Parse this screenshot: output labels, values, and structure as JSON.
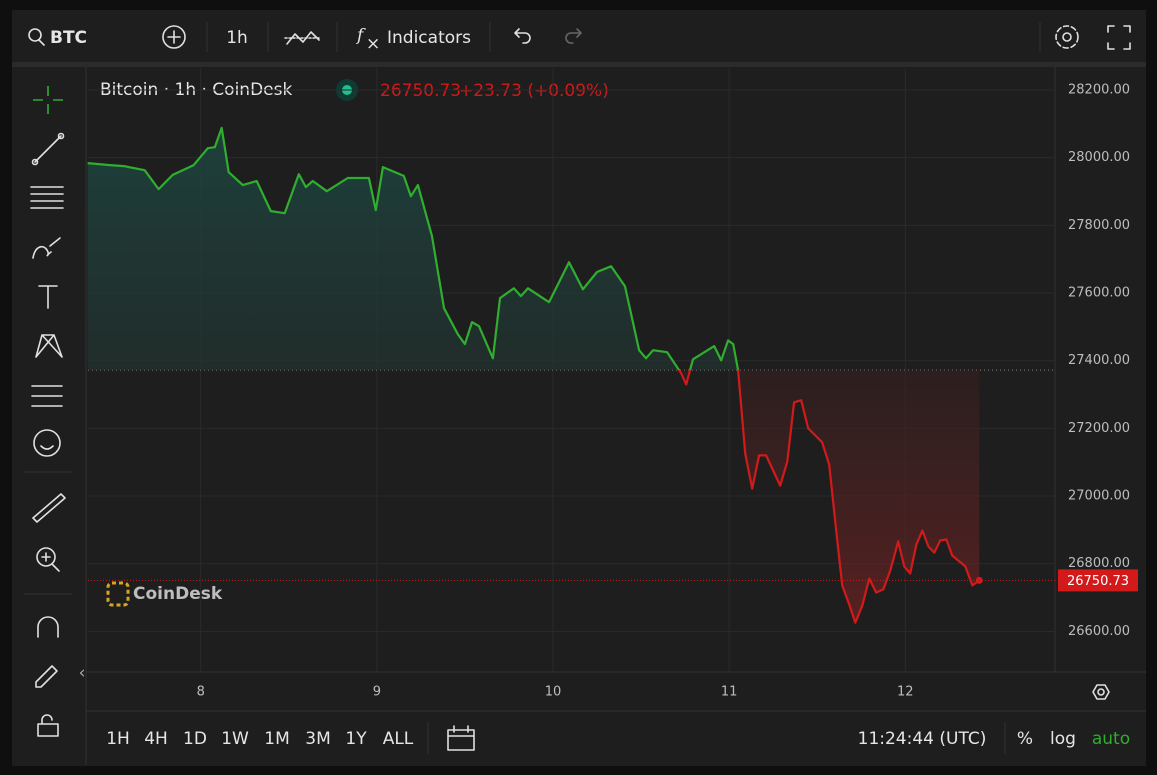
{
  "toolbar": {
    "symbol": "BTC",
    "interval": "1h",
    "indicators": "Indicators"
  },
  "chart_data": {
    "type": "line",
    "title": "Bitcoin · 1h · CoinDesk",
    "change_label": "+23.73 (+0.09%)",
    "watermark": "CoinDesk",
    "x": [
      7.358,
      7.483,
      7.563,
      7.682,
      7.761,
      7.841,
      7.96,
      8.04,
      8.08,
      8.119,
      8.159,
      8.239,
      8.318,
      8.398,
      8.477,
      8.557,
      8.597,
      8.636,
      8.716,
      8.835,
      8.955,
      8.994,
      9.034,
      9.153,
      9.193,
      9.233,
      9.313,
      9.381,
      9.46,
      9.5,
      9.54,
      9.58,
      9.659,
      9.699,
      9.778,
      9.818,
      9.858,
      9.977,
      10.091,
      10.17,
      10.25,
      10.33,
      10.409,
      10.489,
      10.528,
      10.568,
      10.648,
      10.727,
      10.756,
      10.795,
      10.915,
      10.955,
      10.994,
      11.023,
      11.051,
      11.091,
      11.131,
      11.17,
      11.21,
      11.29,
      11.33,
      11.369,
      11.409,
      11.449,
      11.528,
      11.568,
      11.608,
      11.642,
      11.682,
      11.716,
      11.756,
      11.795,
      11.835,
      11.875,
      11.915,
      11.96,
      11.994,
      12.028,
      12.063,
      12.097,
      12.131,
      12.165,
      12.199,
      12.233,
      12.267,
      12.341,
      12.381,
      12.42
    ],
    "values": [
      27984,
      27978,
      27975,
      27963,
      27907,
      27949,
      27978,
      28028,
      28031,
      28088,
      27957,
      27919,
      27931,
      27842,
      27836,
      27951,
      27913,
      27931,
      27901,
      27940,
      27940,
      27845,
      27972,
      27946,
      27886,
      27919,
      27768,
      27555,
      27478,
      27449,
      27514,
      27502,
      27407,
      27585,
      27614,
      27591,
      27614,
      27573,
      27691,
      27611,
      27662,
      27679,
      27620,
      27431,
      27407,
      27431,
      27425,
      27363,
      27330,
      27404,
      27443,
      27401,
      27460,
      27449,
      27372,
      27126,
      27022,
      27120,
      27120,
      27031,
      27102,
      27277,
      27283,
      27200,
      27159,
      27093,
      26898,
      26736,
      26679,
      26626,
      26676,
      26756,
      26715,
      26724,
      26780,
      26866,
      26792,
      26771,
      26857,
      26898,
      26851,
      26833,
      26869,
      26872,
      26824,
      26792,
      26736,
      26750.73
    ],
    "last_value": 26750.73,
    "baseline": 27372,
    "up_color": "#2fae2f",
    "down_color": "#d31a1a",
    "grid": true,
    "xlim": [
      7.36,
      12.85
    ],
    "xticks": [
      8,
      9,
      10,
      11,
      12
    ],
    "ylim": [
      26480,
      28265
    ],
    "yticks": [
      {
        "value": 26600,
        "label": "26600.00"
      },
      {
        "value": 26800,
        "label": "26800.00"
      },
      {
        "value": 27000,
        "label": "27000.00"
      },
      {
        "value": 27200,
        "label": "27200.00"
      },
      {
        "value": 27400,
        "label": "27400.00"
      },
      {
        "value": 27600,
        "label": "27600.00"
      },
      {
        "value": 27800,
        "label": "27800.00"
      },
      {
        "value": 28000,
        "label": "28000.00"
      },
      {
        "value": 28200,
        "label": "28200.00"
      }
    ]
  },
  "bottom_bar": {
    "ranges": [
      "1H",
      "4H",
      "1D",
      "1W",
      "1M",
      "3M",
      "1Y",
      "ALL"
    ],
    "clock": "11:24:44 (UTC)",
    "scale_options": [
      "%",
      "log",
      "auto"
    ]
  }
}
